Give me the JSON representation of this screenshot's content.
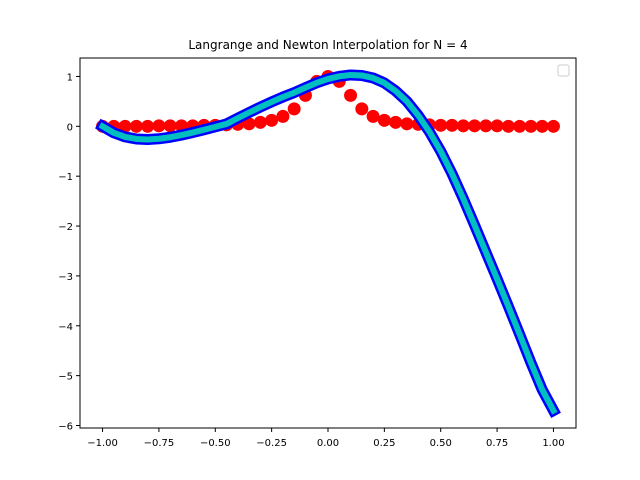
{
  "chart_data": {
    "type": "line",
    "title": "Langrange and Newton Interpolation for N = 4",
    "xlabel": "",
    "ylabel": "",
    "xlim": [
      -1.1,
      1.1
    ],
    "ylim": [
      -6.05,
      1.37
    ],
    "grid": false,
    "legend": {
      "placement": "top-right",
      "entries": []
    },
    "xticks": [
      -1.0,
      -0.75,
      -0.5,
      -0.25,
      0.0,
      0.25,
      0.5,
      0.75,
      1.0
    ],
    "xtick_labels": [
      "−1.00",
      "−0.75",
      "−0.50",
      "−0.25",
      "0.00",
      "0.25",
      "0.50",
      "0.75",
      "1.00"
    ],
    "yticks": [
      1,
      0,
      -1,
      -2,
      -3,
      -4,
      -5,
      -6
    ],
    "ytick_labels": [
      "1",
      "0",
      "−1",
      "−2",
      "−3",
      "−4",
      "−5",
      "−6"
    ],
    "series": [
      {
        "style": "markers",
        "color": "#ff0000",
        "x": [
          -1.0,
          -0.95,
          -0.9,
          -0.85,
          -0.8,
          -0.75,
          -0.7,
          -0.65,
          -0.6,
          -0.55,
          -0.5,
          -0.45,
          -0.4,
          -0.35,
          -0.3,
          -0.25,
          -0.2,
          -0.15,
          -0.1,
          -0.05,
          0.0,
          0.05,
          0.1,
          0.15,
          0.2,
          0.25,
          0.3,
          0.35,
          0.4,
          0.45,
          0.5,
          0.55,
          0.6,
          0.65,
          0.7,
          0.75,
          0.8,
          0.85,
          0.9,
          0.95,
          1.0
        ],
        "y": [
          0.0,
          0.0,
          0.0,
          0.0,
          0.0,
          0.01,
          0.01,
          0.01,
          0.01,
          0.02,
          0.02,
          0.03,
          0.04,
          0.05,
          0.08,
          0.12,
          0.2,
          0.35,
          0.62,
          0.9,
          1.0,
          0.9,
          0.62,
          0.35,
          0.2,
          0.12,
          0.08,
          0.05,
          0.04,
          0.03,
          0.02,
          0.02,
          0.01,
          0.01,
          0.01,
          0.01,
          0.0,
          0.0,
          0.0,
          0.0,
          0.0
        ]
      },
      {
        "style": "line",
        "color": "#0000ff",
        "x": [
          -1.0,
          -0.95,
          -0.9,
          -0.85,
          -0.8,
          -0.75,
          -0.7,
          -0.65,
          -0.6,
          -0.55,
          -0.5,
          -0.45,
          -0.4,
          -0.35,
          -0.3,
          -0.25,
          -0.2,
          -0.15,
          -0.1,
          -0.05,
          0.0,
          0.05,
          0.1,
          0.15,
          0.2,
          0.25,
          0.3,
          0.35,
          0.4,
          0.45,
          0.5,
          0.55,
          0.6,
          0.65,
          0.7,
          0.75,
          0.8,
          0.85,
          0.9,
          0.95,
          1.0
        ],
        "y": [
          0.0,
          -0.131,
          -0.212,
          -0.254,
          -0.264,
          -0.25,
          -0.219,
          -0.176,
          -0.125,
          -0.069,
          -0.011,
          0.048,
          0.164,
          0.277,
          0.386,
          0.489,
          0.587,
          0.676,
          0.776,
          0.872,
          0.95,
          1.003,
          1.03,
          1.02,
          0.97,
          0.87,
          0.71,
          0.5,
          0.22,
          -0.11,
          -0.5,
          -0.95,
          -1.45,
          -1.98,
          -2.52,
          -3.06,
          -3.61,
          -4.17,
          -4.74,
          -5.28,
          -5.7
        ]
      },
      {
        "style": "line",
        "color": "#00bfbf",
        "x": [
          -1.0,
          -0.95,
          -0.9,
          -0.85,
          -0.8,
          -0.75,
          -0.7,
          -0.65,
          -0.6,
          -0.55,
          -0.5,
          -0.45,
          -0.4,
          -0.35,
          -0.3,
          -0.25,
          -0.2,
          -0.15,
          -0.1,
          -0.05,
          0.0,
          0.05,
          0.1,
          0.15,
          0.2,
          0.25,
          0.3,
          0.35,
          0.4,
          0.45,
          0.5,
          0.55,
          0.6,
          0.65,
          0.7,
          0.75,
          0.8,
          0.85,
          0.9,
          0.95,
          1.0
        ],
        "y": [
          0.0,
          -0.131,
          -0.212,
          -0.254,
          -0.264,
          -0.25,
          -0.219,
          -0.176,
          -0.125,
          -0.069,
          -0.011,
          0.048,
          0.164,
          0.277,
          0.386,
          0.489,
          0.587,
          0.676,
          0.776,
          0.872,
          0.95,
          1.003,
          1.03,
          1.02,
          0.97,
          0.87,
          0.71,
          0.5,
          0.22,
          -0.11,
          -0.5,
          -0.95,
          -1.45,
          -1.98,
          -2.52,
          -3.06,
          -3.61,
          -4.17,
          -4.74,
          -5.28,
          -5.7
        ]
      }
    ]
  }
}
